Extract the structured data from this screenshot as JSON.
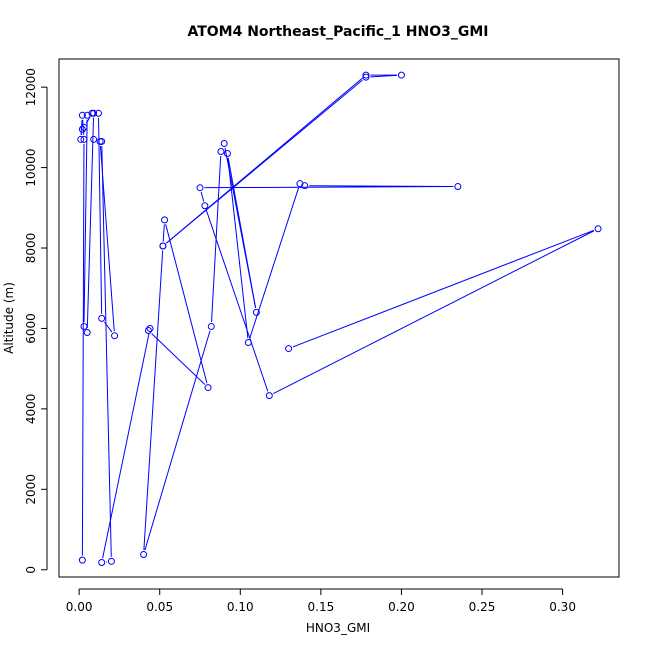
{
  "chart_data": {
    "type": "line",
    "title": "ATOM4 Northeast_Pacific_1 HNO3_GMI",
    "xlabel": "HNO3_GMI",
    "ylabel": "Altitude (m)",
    "xlim": [
      -0.0125,
      0.335
    ],
    "ylim": [
      -180,
      12700
    ],
    "xticks": [
      0.0,
      0.05,
      0.1,
      0.15,
      0.2,
      0.25,
      0.3
    ],
    "xtick_labels": [
      "0.00",
      "0.05",
      "0.10",
      "0.15",
      "0.20",
      "0.25",
      "0.30"
    ],
    "yticks": [
      0,
      2000,
      4000,
      6000,
      8000,
      10000,
      12000
    ],
    "ytick_labels": [
      "0",
      "2000",
      "4000",
      "6000",
      "8000",
      "10000",
      "12000"
    ],
    "color": "#0000ff",
    "marker": "open-circle",
    "series": [
      {
        "x": [
          0.002,
          0.003,
          0.002,
          0.001,
          0.002,
          0.003,
          0.008,
          0.005,
          0.003,
          0.005,
          0.009,
          0.012,
          0.014,
          0.022,
          0.013,
          0.009,
          0.014,
          0.02,
          0.014,
          0.044,
          0.043,
          0.08,
          0.053,
          0.052,
          0.178,
          0.2,
          0.178,
          0.052,
          0.04,
          0.082,
          0.088,
          0.09,
          0.11,
          0.092,
          0.105,
          0.137,
          0.14,
          0.235,
          0.075,
          0.078,
          0.118,
          0.322,
          0.13
        ],
        "y": [
          240,
          10700,
          11300,
          10700,
          10950,
          11000,
          11350,
          11300,
          6050,
          5900,
          11350,
          11350,
          6250,
          5820,
          10650,
          10700,
          10650,
          210,
          180,
          6000,
          5950,
          4530,
          8700,
          8050,
          12300,
          12300,
          12250,
          8050,
          380,
          6050,
          10400,
          10600,
          6400,
          10350,
          5650,
          9600,
          9550,
          9530,
          9500,
          9050,
          4330,
          8480,
          5500
        ]
      }
    ]
  }
}
